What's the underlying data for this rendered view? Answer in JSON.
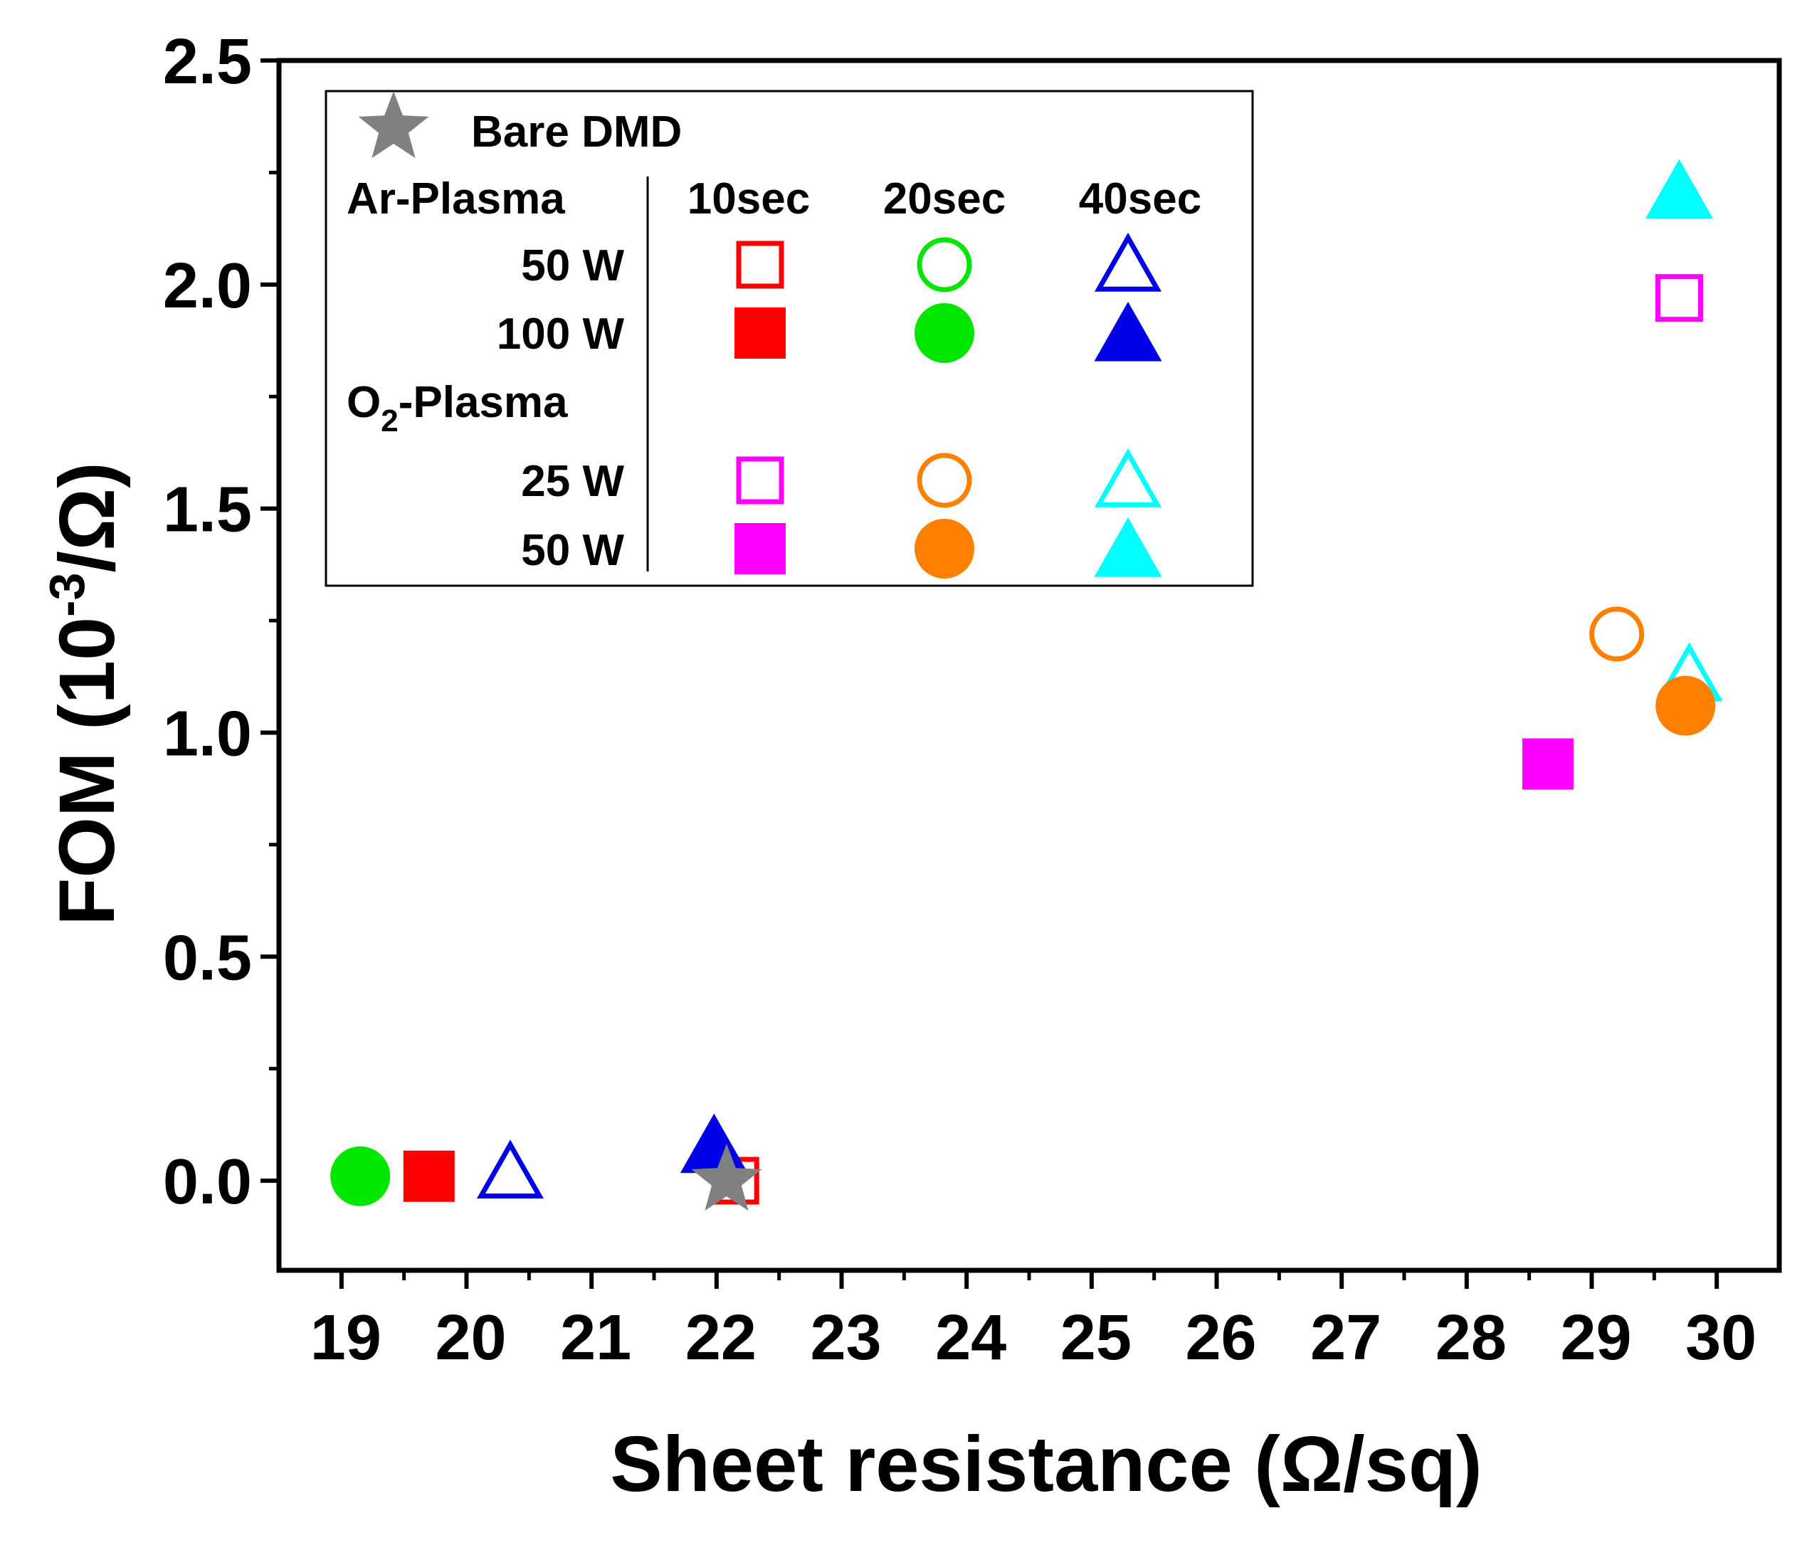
{
  "chart_data": {
    "type": "scatter",
    "xlabel": "Sheet resistance (Ω/sq)",
    "ylabel": {
      "main": "FOM (10",
      "sup": "-3",
      "tail": "/Ω)"
    },
    "xlim": [
      18.5,
      30.5
    ],
    "ylim": [
      -0.2,
      2.5
    ],
    "x_ticks": [
      "19",
      "20",
      "21",
      "22",
      "23",
      "24",
      "25",
      "26",
      "27",
      "28",
      "29",
      "30"
    ],
    "y_ticks": [
      "0.0",
      "0.5",
      "1.0",
      "1.5",
      "2.0",
      "2.5"
    ],
    "legend": {
      "placement": "top-left",
      "bare_label": "Bare DMD",
      "ar_label": "Ar-Plasma",
      "o2_label": {
        "main": "O",
        "sub": "2",
        "tail": "-Plasma"
      },
      "times": [
        "10sec",
        "20sec",
        "40sec"
      ],
      "ar_powers": [
        "50 W",
        "100 W"
      ],
      "o2_powers": [
        "25 W",
        "50 W"
      ]
    },
    "series": [
      {
        "group": "Ar",
        "power": "50 W",
        "time": "10sec",
        "marker": "square",
        "filled": false,
        "color": "#ff0000",
        "x": 22.15,
        "y": 0.0
      },
      {
        "group": "Ar",
        "power": "50 W",
        "time": "20sec",
        "marker": "circle",
        "filled": false,
        "color": "#00e600",
        "x": null,
        "y": null
      },
      {
        "group": "Ar",
        "power": "50 W",
        "time": "40sec",
        "marker": "triangle",
        "filled": false,
        "color": "#0000e6",
        "x": 20.35,
        "y": 0.02
      },
      {
        "group": "Ar",
        "power": "100 W",
        "time": "10sec",
        "marker": "square",
        "filled": true,
        "color": "#ff0000",
        "x": 19.7,
        "y": 0.01
      },
      {
        "group": "Ar",
        "power": "100 W",
        "time": "20sec",
        "marker": "circle",
        "filled": true,
        "color": "#00e600",
        "x": 19.15,
        "y": 0.01
      },
      {
        "group": "Ar",
        "power": "100 W",
        "time": "40sec",
        "marker": "triangle",
        "filled": true,
        "color": "#0000e6",
        "x": 21.98,
        "y": 0.08
      },
      {
        "group": "O2",
        "power": "25 W",
        "time": "10sec",
        "marker": "square",
        "filled": false,
        "color": "#ff00ff",
        "x": 29.7,
        "y": 1.97
      },
      {
        "group": "O2",
        "power": "25 W",
        "time": "20sec",
        "marker": "circle",
        "filled": false,
        "color": "#ff8000",
        "x": 29.2,
        "y": 1.22
      },
      {
        "group": "O2",
        "power": "25 W",
        "time": "40sec",
        "marker": "triangle",
        "filled": false,
        "color": "#00ffff",
        "x": 29.78,
        "y": 1.13
      },
      {
        "group": "O2",
        "power": "50 W",
        "time": "10sec",
        "marker": "square",
        "filled": true,
        "color": "#ff00ff",
        "x": 28.65,
        "y": 0.93
      },
      {
        "group": "O2",
        "power": "50 W",
        "time": "20sec",
        "marker": "circle",
        "filled": true,
        "color": "#ff8000",
        "x": 29.75,
        "y": 1.06
      },
      {
        "group": "O2",
        "power": "50 W",
        "time": "40sec",
        "marker": "triangle",
        "filled": true,
        "color": "#00ffff",
        "x": 29.7,
        "y": 2.21
      },
      {
        "group": "Bare",
        "label": "Bare DMD",
        "marker": "star",
        "filled": true,
        "color": "#808080",
        "x": 22.08,
        "y": 0.0
      }
    ],
    "grid": false
  }
}
